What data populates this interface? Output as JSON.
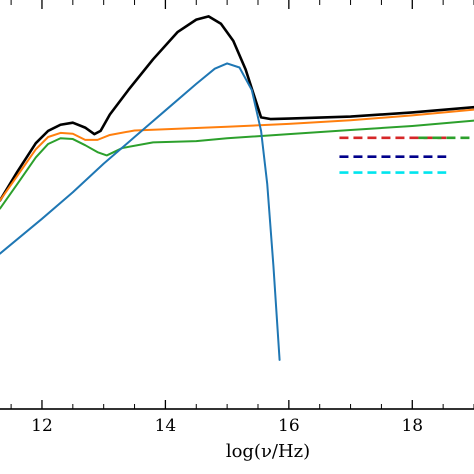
{
  "chart_data": {
    "type": "line",
    "title": "",
    "xlabel": "log(ν/Hz)",
    "ylabel": "",
    "xlim": [
      11.32,
      19.0
    ],
    "ylim": [
      0,
      1
    ],
    "xticks": [
      12,
      14,
      16,
      18
    ],
    "xtick_labels": [
      "12",
      "14",
      "16",
      "18"
    ],
    "grid": false,
    "legend": "none",
    "series": [
      {
        "color": "#000000",
        "style": "solid",
        "x": [
          11.32,
          11.6,
          11.9,
          12.1,
          12.3,
          12.5,
          12.7,
          12.85,
          12.95,
          13.1,
          13.4,
          13.8,
          14.2,
          14.5,
          14.7,
          14.9,
          15.1,
          15.3,
          15.45,
          15.55,
          15.7,
          16.0,
          17.0,
          18.0,
          19.0
        ],
        "y": [
          0.51,
          0.58,
          0.65,
          0.68,
          0.695,
          0.7,
          0.688,
          0.672,
          0.68,
          0.72,
          0.78,
          0.855,
          0.922,
          0.952,
          0.96,
          0.942,
          0.9,
          0.83,
          0.76,
          0.713,
          0.709,
          0.71,
          0.715,
          0.725,
          0.738
        ]
      },
      {
        "color": "#ff7f0e",
        "style": "solid",
        "x": [
          11.32,
          11.6,
          11.9,
          12.1,
          12.3,
          12.5,
          12.7,
          12.9,
          13.1,
          13.5,
          14.0,
          15.0,
          16.0,
          17.0,
          18.0,
          19.0
        ],
        "y": [
          0.51,
          0.57,
          0.635,
          0.665,
          0.675,
          0.673,
          0.658,
          0.658,
          0.67,
          0.681,
          0.684,
          0.69,
          0.697,
          0.706,
          0.718,
          0.732
        ]
      },
      {
        "color": "#2ca02c",
        "style": "solid",
        "x": [
          11.32,
          11.6,
          11.9,
          12.1,
          12.3,
          12.5,
          12.7,
          12.9,
          13.05,
          13.3,
          13.8,
          14.5,
          15.0,
          16.0,
          17.0,
          18.0,
          19.0
        ],
        "y": [
          0.49,
          0.55,
          0.615,
          0.648,
          0.662,
          0.66,
          0.645,
          0.628,
          0.62,
          0.638,
          0.652,
          0.655,
          0.662,
          0.672,
          0.682,
          0.692,
          0.705
        ]
      },
      {
        "color": "#1f77b4",
        "style": "solid",
        "x": [
          11.32,
          12.0,
          12.5,
          13.0,
          13.5,
          14.0,
          14.5,
          14.8,
          15.0,
          15.2,
          15.4,
          15.55,
          15.65,
          15.75,
          15.85
        ],
        "y": [
          0.38,
          0.465,
          0.53,
          0.6,
          0.665,
          0.73,
          0.795,
          0.832,
          0.845,
          0.835,
          0.78,
          0.68,
          0.55,
          0.35,
          0.12
        ]
      },
      {
        "color": "#d62728",
        "style": "dashed",
        "x": [
          16.82,
          18.55
        ],
        "y": [
          0.663,
          0.663
        ]
      },
      {
        "color": "#2ca02c",
        "style": "dashed",
        "x": [
          18.1,
          19.0
        ],
        "y": [
          0.663,
          0.663
        ]
      },
      {
        "color": "#00008b",
        "style": "dashed",
        "x": [
          16.82,
          18.55
        ],
        "y": [
          0.617,
          0.617
        ]
      },
      {
        "color": "#00e5ee",
        "style": "dashed",
        "x": [
          16.82,
          18.55
        ],
        "y": [
          0.578,
          0.578
        ]
      }
    ]
  }
}
